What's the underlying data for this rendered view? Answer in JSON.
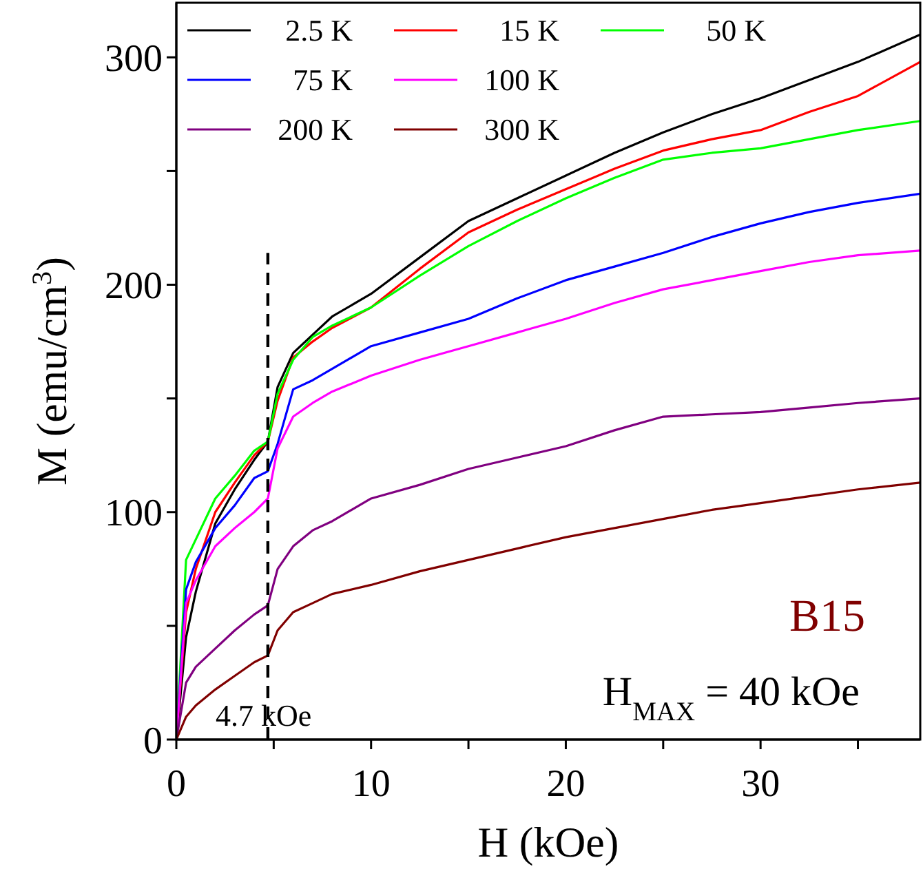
{
  "chart_data": {
    "type": "line",
    "xlabel": "H (kOe)",
    "ylabel": "M (emu/cm$^{3}$)",
    "x": [
      0,
      0.5,
      1,
      2,
      3,
      4,
      4.7,
      5.2,
      6,
      7,
      8,
      10,
      12.5,
      15,
      17.5,
      20,
      22.5,
      25,
      27.5,
      30,
      32.5,
      35,
      38.2
    ],
    "series": [
      {
        "name": "2.5 K",
        "color": "#000000",
        "values": [
          0,
          45,
          65,
          95,
          110,
          123,
          131,
          155,
          170,
          178,
          186,
          196,
          212,
          228,
          238,
          248,
          258,
          267,
          275,
          282,
          290,
          298,
          310
        ]
      },
      {
        "name": "15 K",
        "color": "#ff0000",
        "values": [
          0,
          56,
          75,
          100,
          113,
          125,
          131,
          149,
          168,
          175,
          181,
          190,
          207,
          223,
          233,
          242,
          251,
          259,
          264,
          268,
          276,
          283,
          298
        ]
      },
      {
        "name": "50 K",
        "color": "#00ff00",
        "values": [
          0,
          79,
          88,
          106,
          116,
          127,
          131,
          152,
          167,
          177,
          182,
          190,
          204,
          217,
          228,
          238,
          247,
          255,
          258,
          260,
          264,
          268,
          272
        ]
      },
      {
        "name": "75 K",
        "color": "#0000ff",
        "values": [
          0,
          66,
          78,
          93,
          103,
          115,
          118,
          130,
          154,
          158,
          163,
          173,
          179,
          185,
          194,
          202,
          208,
          214,
          221,
          227,
          232,
          236,
          240
        ]
      },
      {
        "name": "100 K",
        "color": "#ff00ff",
        "values": [
          0,
          60,
          70,
          85,
          93,
          100,
          106,
          128,
          142,
          148,
          153,
          160,
          167,
          173,
          179,
          185,
          192,
          198,
          202,
          206,
          210,
          213,
          215
        ]
      },
      {
        "name": "200 K",
        "color": "#800080",
        "values": [
          0,
          25,
          32,
          40,
          48,
          55,
          59,
          75,
          85,
          92,
          96,
          106,
          112,
          119,
          124,
          129,
          136,
          142,
          143,
          144,
          146,
          148,
          150
        ]
      },
      {
        "name": "300 K",
        "color": "#800000",
        "values": [
          0,
          10,
          15,
          22,
          28,
          34,
          37,
          48,
          56,
          60,
          64,
          68,
          74,
          79,
          84,
          89,
          93,
          97,
          101,
          104,
          107,
          110,
          113
        ]
      },
      {
        "type": "line",
        "x": [
          4.7,
          4.7
        ],
        "values": [
          0,
          214
        ],
        "color": "#000000",
        "line_style": "dashed"
      }
    ],
    "xlim": [
      0,
      38.2
    ],
    "xticks": [
      0,
      {
        "value": 5,
        "label": null
      },
      10,
      {
        "value": 15,
        "label": null
      },
      20,
      {
        "value": 25,
        "label": null
      },
      30,
      {
        "value": 35,
        "label": null
      }
    ],
    "ylim": [
      0,
      324
    ],
    "yticks": [
      0,
      {
        "value": 50,
        "label": null
      },
      100,
      {
        "value": 150,
        "label": null
      },
      200,
      {
        "value": 250,
        "label": null
      },
      300
    ],
    "annotations": [
      {
        "text": "4.7 kOe",
        "x": 4.7,
        "y": 0
      },
      "B15",
      "H$_{MAX}$ = 40 kOe"
    ],
    "legend": "top left",
    "grid": false,
    "marker": "none",
    "line_style": "solid"
  }
}
